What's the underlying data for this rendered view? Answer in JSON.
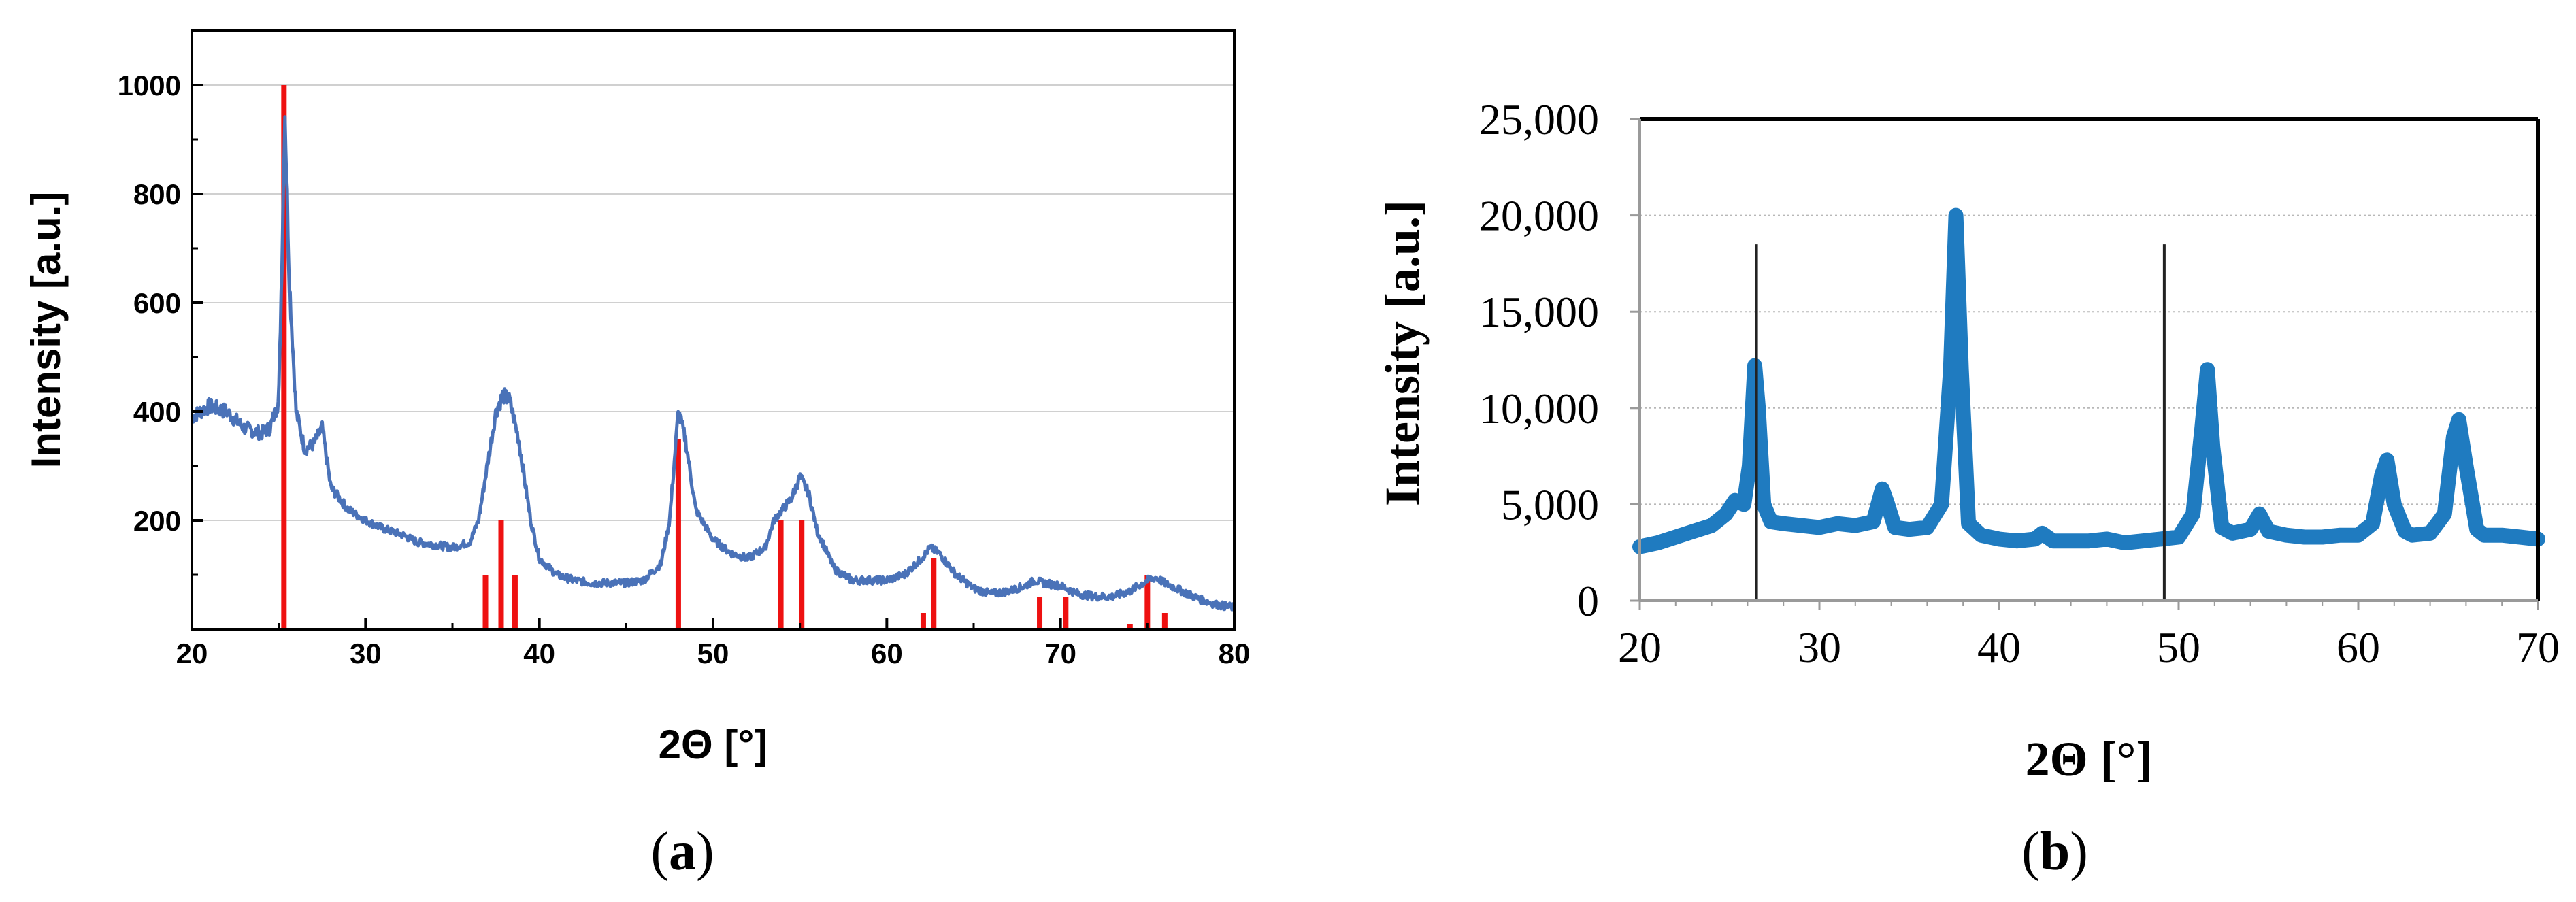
{
  "chart_data": [
    {
      "panel": "(a)",
      "type": "line",
      "xlabel": "2Θ [°]",
      "ylabel": "Intensity [a.u.]",
      "xlim": [
        20,
        80
      ],
      "ylim": [
        0,
        1100
      ],
      "xticks": [
        20,
        30,
        40,
        50,
        60,
        70,
        80
      ],
      "yticks": [
        200,
        400,
        600,
        800,
        1000
      ],
      "grid": true,
      "colors": {
        "pattern": "#4a72b8",
        "reference": "#ee1111"
      },
      "series": [
        {
          "style": "line",
          "x": [
            20,
            21,
            22,
            23,
            24,
            24.5,
            25,
            25.2,
            25.35,
            25.6,
            26,
            26.5,
            27,
            27.5,
            28,
            29,
            30,
            31,
            32,
            33,
            34,
            35,
            36,
            36.5,
            37,
            37.5,
            37.9,
            38.3,
            38.8,
            39.5,
            40,
            41,
            42,
            43,
            44,
            45,
            46,
            47,
            47.5,
            48,
            48.4,
            49,
            50,
            51,
            52,
            53,
            53.5,
            54,
            54.5,
            55,
            55.5,
            56,
            57,
            58,
            59,
            60,
            61,
            62,
            62.5,
            63,
            64,
            65,
            66,
            67,
            68,
            68.5,
            69,
            70,
            71,
            72,
            73,
            74,
            75,
            75.5,
            76,
            77,
            78,
            79,
            80
          ],
          "values": [
            390,
            410,
            400,
            370,
            360,
            370,
            420,
            700,
            960,
            650,
            400,
            330,
            340,
            370,
            260,
            220,
            200,
            185,
            175,
            160,
            155,
            150,
            160,
            200,
            300,
            400,
            430,
            420,
            350,
            200,
            130,
            100,
            90,
            85,
            85,
            85,
            90,
            120,
            200,
            400,
            350,
            220,
            165,
            140,
            130,
            150,
            200,
            220,
            240,
            280,
            250,
            180,
            110,
            90,
            90,
            90,
            100,
            130,
            150,
            140,
            100,
            75,
            65,
            70,
            80,
            90,
            85,
            80,
            65,
            60,
            60,
            70,
            90,
            95,
            85,
            70,
            55,
            45,
            40
          ]
        },
        {
          "style": "stick",
          "x": [
            25.3,
            36.9,
            37.8,
            38.6,
            48.0,
            53.9,
            55.1,
            62.1,
            62.7,
            68.8,
            70.3,
            74.0,
            75.0,
            76.0
          ],
          "values": [
            1000,
            100,
            200,
            100,
            350,
            200,
            200,
            30,
            130,
            60,
            60,
            10,
            100,
            30
          ]
        }
      ]
    },
    {
      "panel": "(b)",
      "type": "line",
      "xlabel": "2Θ [°]",
      "ylabel": "Intensity [a.u.]",
      "xlim": [
        20,
        70
      ],
      "ylim": [
        0,
        25000
      ],
      "xticks": [
        20,
        30,
        40,
        50,
        60,
        70
      ],
      "yticks": [
        0,
        5000,
        10000,
        15000,
        20000,
        25000
      ],
      "ytick_labels": [
        "0",
        "5,000",
        "10,000",
        "15,000",
        "20,000",
        "25,000"
      ],
      "grid": true,
      "colors": {
        "pattern": "#1f7bc0",
        "marker_lines": "#222222"
      },
      "vertical_lines": [
        26.5,
        49.2
      ],
      "series": [
        {
          "style": "line",
          "x": [
            20,
            21,
            22,
            23,
            24,
            24.8,
            25.3,
            25.8,
            26.1,
            26.4,
            26.6,
            26.9,
            27.3,
            28,
            29,
            30,
            31,
            32,
            33,
            33.5,
            33.8,
            34.2,
            35,
            36,
            36.8,
            37.3,
            37.6,
            37.9,
            38.3,
            39,
            40,
            41,
            42,
            42.4,
            43,
            44,
            45,
            46,
            47,
            48,
            49,
            50,
            50.8,
            51.3,
            51.6,
            51.9,
            52.4,
            53,
            54,
            54.5,
            55,
            56,
            57,
            58,
            59,
            60,
            60.8,
            61.3,
            61.6,
            62,
            62.6,
            63,
            64,
            64.8,
            65.3,
            65.6,
            66,
            66.6,
            67,
            68,
            69,
            70
          ],
          "values": [
            2800,
            3000,
            3300,
            3600,
            3900,
            4500,
            5200,
            5000,
            7000,
            12200,
            10000,
            5000,
            4100,
            4000,
            3900,
            3800,
            4000,
            3900,
            4100,
            5800,
            5000,
            3800,
            3700,
            3800,
            5000,
            12000,
            20000,
            12000,
            4000,
            3400,
            3200,
            3100,
            3200,
            3500,
            3100,
            3100,
            3100,
            3200,
            3000,
            3100,
            3200,
            3300,
            4500,
            9000,
            12000,
            8000,
            3800,
            3500,
            3700,
            4500,
            3600,
            3400,
            3300,
            3300,
            3400,
            3400,
            4000,
            6500,
            7300,
            5000,
            3600,
            3400,
            3500,
            4500,
            8500,
            9400,
            7000,
            3700,
            3400,
            3400,
            3300,
            3200
          ]
        }
      ]
    }
  ],
  "panel_labels": {
    "a": "a",
    "b": "b"
  }
}
